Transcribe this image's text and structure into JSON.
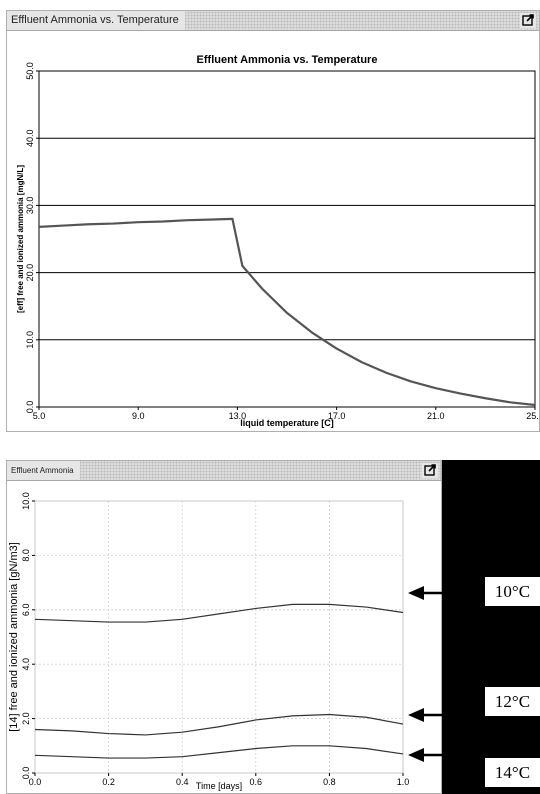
{
  "panels": [
    {
      "title": "Effluent Ammonia vs. Temperature"
    },
    {
      "title": "Effluent Ammonia"
    }
  ],
  "annotations": [
    "10°C",
    "12°C",
    "14°C"
  ],
  "chart_data": [
    {
      "type": "line",
      "title": "Effluent Ammonia vs. Temperature",
      "xlabel": "liquid temperature [C]",
      "ylabel": "[eff] free and ionized ammonia [mgN/L]",
      "xlim": [
        5,
        25
      ],
      "ylim": [
        0,
        50
      ],
      "xticks": [
        "5.0",
        "9.0",
        "13.0",
        "17.0",
        "21.0",
        "25.0"
      ],
      "yticks": [
        "0.0",
        "10.0",
        "20.0",
        "30.0",
        "40.0",
        "50.0"
      ],
      "grid": "horizontal",
      "line_color": "#555555",
      "series": [
        {
          "x": [
            5,
            6,
            7,
            8,
            9,
            10,
            11,
            12,
            12.8,
            13.2,
            14,
            15,
            16,
            17,
            18,
            19,
            20,
            21,
            22,
            23,
            24,
            25
          ],
          "y": [
            26.8,
            27.0,
            27.2,
            27.3,
            27.5,
            27.6,
            27.8,
            27.9,
            28.0,
            21.0,
            17.6,
            14.0,
            11.1,
            8.7,
            6.7,
            5.1,
            3.8,
            2.8,
            2.0,
            1.3,
            0.7,
            0.3
          ]
        }
      ]
    },
    {
      "type": "line",
      "xlabel": "Time [days]",
      "ylabel": "[14] free and ionized ammonia [gN/m3]",
      "xlim": [
        0,
        1
      ],
      "ylim": [
        0,
        10
      ],
      "xticks": [
        "0.0",
        "0.2",
        "0.4",
        "0.6",
        "0.8",
        "1.0"
      ],
      "yticks": [
        "0.0",
        "2.0",
        "4.0",
        "6.0",
        "8.0",
        "10.0"
      ],
      "grid": "dotted",
      "line_color": "#333333",
      "series": [
        {
          "x": [
            0,
            0.1,
            0.2,
            0.3,
            0.4,
            0.5,
            0.6,
            0.7,
            0.8,
            0.9,
            1.0
          ],
          "y": [
            5.65,
            5.6,
            5.55,
            5.55,
            5.65,
            5.85,
            6.05,
            6.2,
            6.2,
            6.1,
            5.9
          ]
        },
        {
          "x": [
            0,
            0.1,
            0.2,
            0.3,
            0.4,
            0.5,
            0.6,
            0.7,
            0.8,
            0.9,
            1.0
          ],
          "y": [
            1.6,
            1.55,
            1.45,
            1.4,
            1.5,
            1.7,
            1.95,
            2.1,
            2.15,
            2.05,
            1.8
          ]
        },
        {
          "x": [
            0,
            0.1,
            0.2,
            0.3,
            0.4,
            0.5,
            0.6,
            0.7,
            0.8,
            0.9,
            1.0
          ],
          "y": [
            0.65,
            0.6,
            0.55,
            0.55,
            0.6,
            0.75,
            0.9,
            1.0,
            1.0,
            0.9,
            0.7
          ]
        }
      ]
    }
  ]
}
